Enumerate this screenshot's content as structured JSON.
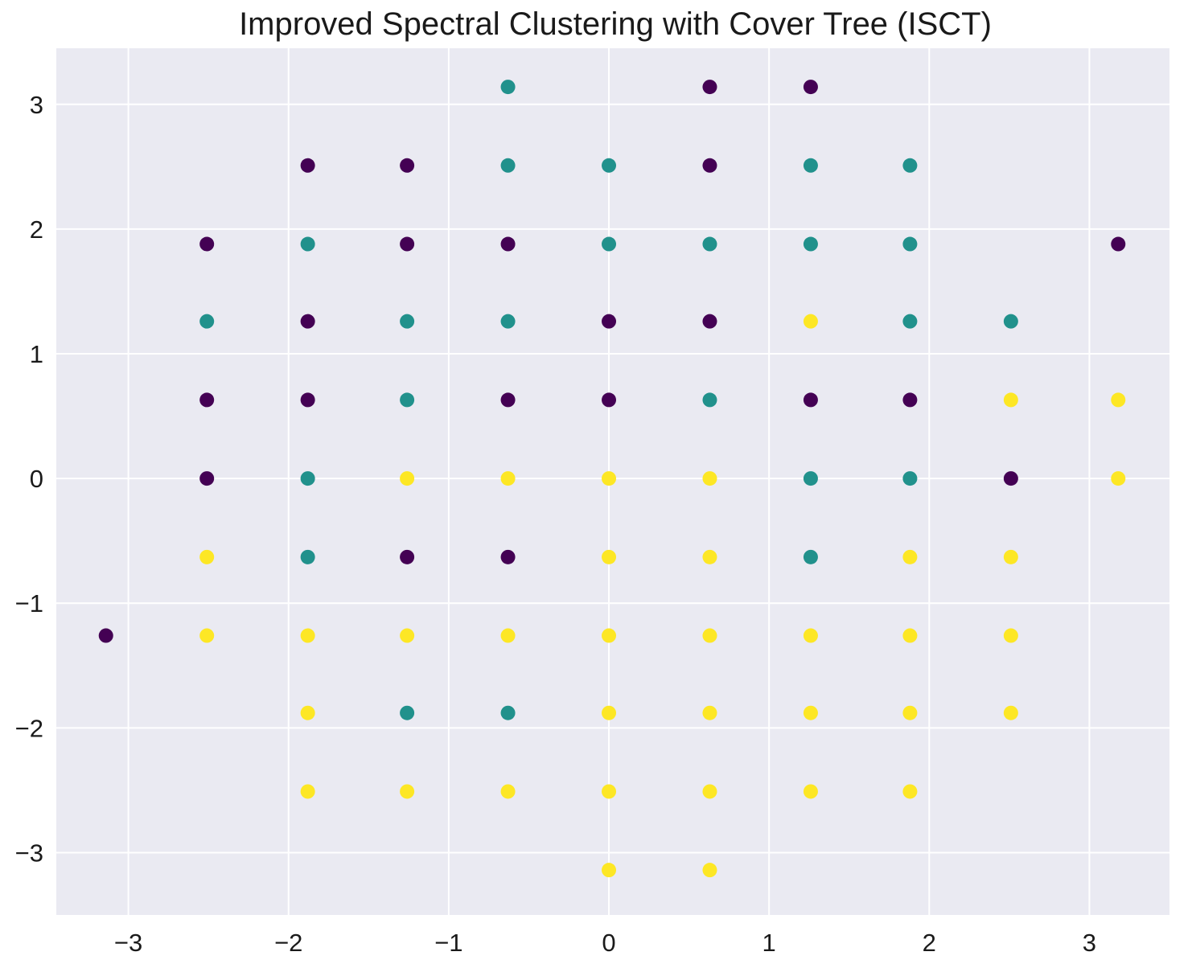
{
  "chart_data": {
    "type": "scatter",
    "title": "Improved Spectral Clustering with Cover Tree (ISCT)",
    "xlabel": "",
    "ylabel": "",
    "xlim": [
      -3.45,
      3.5
    ],
    "ylim": [
      -3.5,
      3.45
    ],
    "xticks": [
      -3,
      -2,
      -1,
      0,
      1,
      2,
      3
    ],
    "yticks": [
      -3,
      -2,
      -1,
      0,
      1,
      2,
      3
    ],
    "xtick_labels": [
      "−3",
      "−2",
      "−1",
      "0",
      "1",
      "2",
      "3"
    ],
    "ytick_labels": [
      "−3",
      "−2",
      "−1",
      "0",
      "1",
      "2",
      "3"
    ],
    "grid": true,
    "legend": "none",
    "colors": {
      "background": "#eaeaf2",
      "grid": "#ffffff",
      "cluster_0": "#440154",
      "cluster_1": "#21918c",
      "cluster_2": "#fde725"
    },
    "series": [
      {
        "color": "#440154",
        "points": [
          [
            0.63,
            3.14
          ],
          [
            1.26,
            3.14
          ],
          [
            -1.88,
            2.51
          ],
          [
            -1.26,
            2.51
          ],
          [
            0.63,
            2.51
          ],
          [
            -2.51,
            1.88
          ],
          [
            -1.26,
            1.88
          ],
          [
            -0.63,
            1.88
          ],
          [
            3.18,
            1.88
          ],
          [
            -1.88,
            1.26
          ],
          [
            0.0,
            1.26
          ],
          [
            0.63,
            1.26
          ],
          [
            -2.51,
            0.63
          ],
          [
            -1.88,
            0.63
          ],
          [
            -0.63,
            0.63
          ],
          [
            0.0,
            0.63
          ],
          [
            1.26,
            0.63
          ],
          [
            1.88,
            0.63
          ],
          [
            -2.51,
            0.0
          ],
          [
            2.51,
            0.0
          ],
          [
            -1.26,
            -0.63
          ],
          [
            -0.63,
            -0.63
          ],
          [
            -3.14,
            -1.26
          ]
        ]
      },
      {
        "color": "#21918c",
        "points": [
          [
            -0.63,
            3.14
          ],
          [
            -0.63,
            2.51
          ],
          [
            0.0,
            2.51
          ],
          [
            1.26,
            2.51
          ],
          [
            1.88,
            2.51
          ],
          [
            -1.88,
            1.88
          ],
          [
            0.0,
            1.88
          ],
          [
            0.63,
            1.88
          ],
          [
            1.26,
            1.88
          ],
          [
            1.88,
            1.88
          ],
          [
            -2.51,
            1.26
          ],
          [
            -1.26,
            1.26
          ],
          [
            -0.63,
            1.26
          ],
          [
            1.88,
            1.26
          ],
          [
            2.51,
            1.26
          ],
          [
            -1.26,
            0.63
          ],
          [
            0.63,
            0.63
          ],
          [
            -1.88,
            0.0
          ],
          [
            1.26,
            0.0
          ],
          [
            1.88,
            0.0
          ],
          [
            -1.88,
            -0.63
          ],
          [
            1.26,
            -0.63
          ],
          [
            -1.26,
            -1.88
          ],
          [
            -0.63,
            -1.88
          ]
        ]
      },
      {
        "color": "#fde725",
        "points": [
          [
            1.26,
            1.26
          ],
          [
            2.51,
            0.63
          ],
          [
            3.18,
            0.63
          ],
          [
            -1.26,
            0.0
          ],
          [
            -0.63,
            0.0
          ],
          [
            0.0,
            0.0
          ],
          [
            0.63,
            0.0
          ],
          [
            3.18,
            0.0
          ],
          [
            -2.51,
            -0.63
          ],
          [
            0.0,
            -0.63
          ],
          [
            0.63,
            -0.63
          ],
          [
            1.88,
            -0.63
          ],
          [
            2.51,
            -0.63
          ],
          [
            -2.51,
            -1.26
          ],
          [
            -1.88,
            -1.26
          ],
          [
            -1.26,
            -1.26
          ],
          [
            -0.63,
            -1.26
          ],
          [
            0.0,
            -1.26
          ],
          [
            0.63,
            -1.26
          ],
          [
            1.26,
            -1.26
          ],
          [
            1.88,
            -1.26
          ],
          [
            2.51,
            -1.26
          ],
          [
            -1.88,
            -1.88
          ],
          [
            0.0,
            -1.88
          ],
          [
            0.63,
            -1.88
          ],
          [
            1.26,
            -1.88
          ],
          [
            1.88,
            -1.88
          ],
          [
            2.51,
            -1.88
          ],
          [
            -1.88,
            -2.51
          ],
          [
            -1.26,
            -2.51
          ],
          [
            -0.63,
            -2.51
          ],
          [
            0.0,
            -2.51
          ],
          [
            0.63,
            -2.51
          ],
          [
            1.26,
            -2.51
          ],
          [
            1.88,
            -2.51
          ],
          [
            0.0,
            -3.14
          ],
          [
            0.63,
            -3.14
          ]
        ]
      }
    ]
  }
}
